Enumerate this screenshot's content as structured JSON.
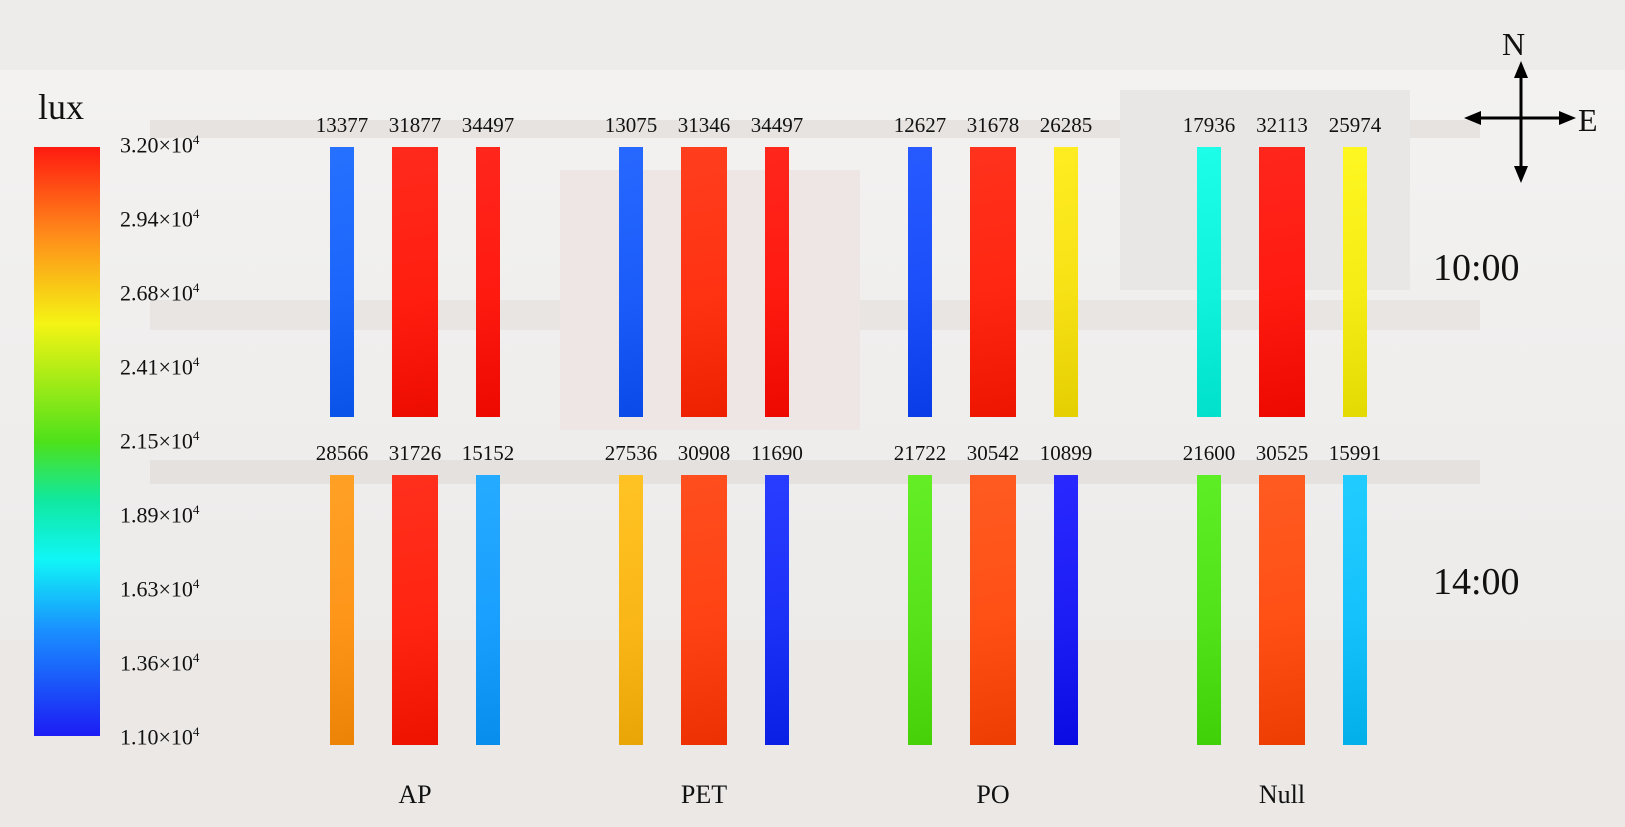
{
  "unit_label": "lux",
  "colorbar_ticks": [
    {
      "mantissa": "3.20×10",
      "exp": "4"
    },
    {
      "mantissa": "2.94×10",
      "exp": "4"
    },
    {
      "mantissa": "2.68×10",
      "exp": "4"
    },
    {
      "mantissa": "2.41×10",
      "exp": "4"
    },
    {
      "mantissa": "2.15×10",
      "exp": "4"
    },
    {
      "mantissa": "1.89×10",
      "exp": "4"
    },
    {
      "mantissa": "1.63×10",
      "exp": "4"
    },
    {
      "mantissa": "1.36×10",
      "exp": "4"
    },
    {
      "mantissa": "1.10×10",
      "exp": "4"
    }
  ],
  "compass": {
    "north": "N",
    "east": "E"
  },
  "colors": {
    "red": "#ff1a10",
    "orange": "#ff8c1a",
    "yellow": "#f4f414",
    "green": "#4ee11a",
    "cyan": "#10f6f6",
    "blue": "#1c1cf4"
  },
  "chart_data": {
    "type": "heatmap",
    "unit": "lux",
    "colorscale_range": [
      11000,
      32000
    ],
    "times": [
      "10:00",
      "14:00"
    ],
    "materials": [
      "AP",
      "PET",
      "PO",
      "Null"
    ],
    "values": {
      "10:00": {
        "AP": [
          13377,
          31877,
          34497
        ],
        "PET": [
          13075,
          31346,
          34497
        ],
        "PO": [
          12627,
          31678,
          26285
        ],
        "Null": [
          17936,
          32113,
          25974
        ]
      },
      "14:00": {
        "AP": [
          28566,
          31726,
          15152
        ],
        "PET": [
          27536,
          30908,
          11690
        ],
        "PO": [
          21722,
          30542,
          10899
        ],
        "Null": [
          21600,
          30525,
          15991
        ]
      }
    }
  }
}
